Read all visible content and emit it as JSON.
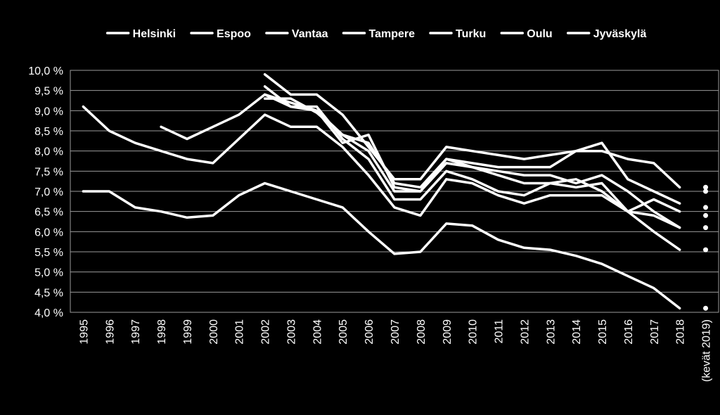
{
  "chart_data": {
    "type": "line",
    "title": "",
    "xlabel": "",
    "ylabel": "",
    "ylim": [
      4.0,
      10.0
    ],
    "yticks": [
      "10,0 %",
      "9,5 %",
      "9,0 %",
      "8,5 %",
      "8,0 %",
      "7,5 %",
      "7,0 %",
      "6,5 %",
      "6,0 %",
      "5,5 %",
      "5,0 %",
      "4,5 %",
      "4,0 %"
    ],
    "xticks": [
      "1995",
      "1996",
      "1997",
      "1998",
      "1999",
      "2000",
      "2001",
      "2002",
      "2003",
      "2004",
      "2005",
      "2006",
      "2007",
      "2008",
      "2009",
      "2010",
      "2011",
      "2012",
      "2013",
      "2014",
      "2015",
      "2016",
      "2017",
      "2018",
      "(kevät 2019)"
    ],
    "legend_position": "top",
    "grid": true,
    "line_color": "#ffffff",
    "series": [
      {
        "name": "Helsinki",
        "x": [
          1995,
          1996,
          1997,
          1998,
          1999,
          2000,
          2001,
          2002,
          2003,
          2004,
          2005,
          2006,
          2007,
          2008,
          2009,
          2010,
          2011,
          2012,
          2013,
          2014,
          2015,
          2016,
          2017,
          2018
        ],
        "values": [
          9.1,
          8.5,
          8.2,
          8.0,
          7.8,
          7.7,
          8.3,
          8.9,
          8.6,
          8.6,
          8.1,
          7.4,
          6.6,
          6.4,
          7.3,
          7.2,
          6.9,
          6.7,
          6.9,
          6.9,
          6.9,
          6.5,
          6.4,
          6.1
        ],
        "spring2019": 6.1
      },
      {
        "name": "Espoo",
        "x": [
          1995,
          1996,
          1997,
          1998,
          1999,
          2000,
          2001,
          2002,
          2003,
          2004,
          2005,
          2006,
          2007,
          2008,
          2009,
          2010,
          2011,
          2012,
          2013,
          2014,
          2015,
          2016,
          2017,
          2018
        ],
        "values": [
          7.0,
          7.0,
          6.6,
          6.5,
          6.35,
          6.4,
          6.9,
          7.2,
          7.0,
          6.8,
          6.6,
          6.0,
          5.45,
          5.5,
          6.2,
          6.15,
          5.8,
          5.6,
          5.55,
          5.4,
          5.2,
          4.9,
          4.6,
          4.1
        ],
        "spring2019": 4.1
      },
      {
        "name": "Vantaa",
        "x": [
          1998,
          1999,
          2000,
          2001,
          2002,
          2003,
          2004,
          2005,
          2006,
          2007,
          2008,
          2009,
          2010,
          2011,
          2012,
          2013,
          2014,
          2015,
          2016,
          2017,
          2018
        ],
        "values": [
          8.6,
          8.3,
          8.6,
          8.9,
          9.4,
          9.1,
          9.0,
          8.2,
          8.4,
          7.1,
          7.0,
          7.8,
          7.6,
          7.4,
          7.2,
          7.2,
          7.1,
          7.2,
          6.5,
          6.8,
          6.5
        ],
        "spring2019": 6.4
      },
      {
        "name": "Tampere",
        "x": [
          2002,
          2003,
          2004,
          2005,
          2006,
          2007,
          2008,
          2009,
          2010,
          2011,
          2012,
          2013,
          2014,
          2015,
          2016,
          2017,
          2018
        ],
        "values": [
          9.9,
          9.4,
          9.4,
          8.9,
          8.1,
          7.3,
          7.3,
          8.1,
          8.0,
          7.9,
          7.8,
          7.9,
          8.0,
          8.0,
          7.8,
          7.7,
          7.1
        ],
        "spring2019": 7.1
      },
      {
        "name": "Turku",
        "x": [
          2002,
          2003,
          2004,
          2005,
          2006,
          2007,
          2008,
          2009,
          2010,
          2011,
          2012,
          2013,
          2014,
          2015,
          2016,
          2017,
          2018
        ],
        "values": [
          9.6,
          9.1,
          9.1,
          8.3,
          7.8,
          6.8,
          6.8,
          7.5,
          7.3,
          7.0,
          6.9,
          7.2,
          7.3,
          7.0,
          6.5,
          6.0,
          5.55
        ],
        "spring2019": 5.55
      },
      {
        "name": "Oulu",
        "x": [
          2002,
          2003,
          2004,
          2005,
          2006,
          2007,
          2008,
          2009,
          2010,
          2011,
          2012,
          2013,
          2014,
          2015,
          2016,
          2017,
          2018
        ],
        "values": [
          9.4,
          9.2,
          9.0,
          8.4,
          8.0,
          7.0,
          7.0,
          7.7,
          7.6,
          7.5,
          7.4,
          7.4,
          7.2,
          7.4,
          7.0,
          6.5,
          6.1
        ],
        "spring2019": 6.6
      },
      {
        "name": "Jyväskylä",
        "x": [
          2002,
          2003,
          2004,
          2005,
          2006,
          2007,
          2008,
          2009,
          2010,
          2011,
          2012,
          2013,
          2014,
          2015,
          2016,
          2017,
          2018
        ],
        "values": [
          9.3,
          9.3,
          8.95,
          8.4,
          8.2,
          7.2,
          7.1,
          7.8,
          7.7,
          7.6,
          7.6,
          7.6,
          8.0,
          8.2,
          7.3,
          7.0,
          6.7
        ],
        "spring2019": 7.0
      }
    ]
  }
}
